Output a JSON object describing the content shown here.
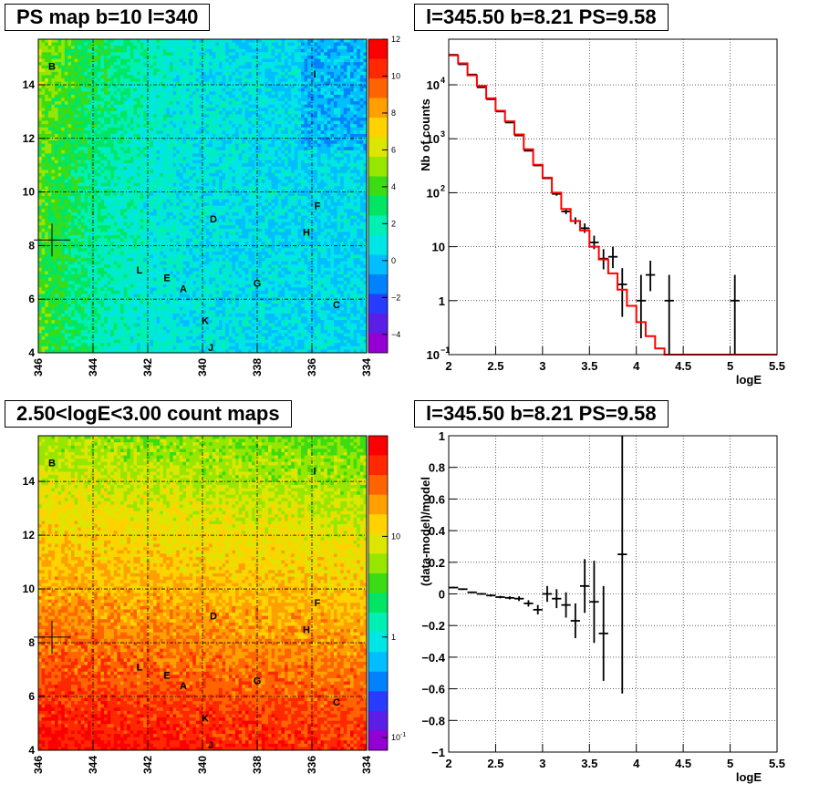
{
  "titles": {
    "tl": "PS map b=10 l=340",
    "tr": "l=345.50 b=8.21 PS=9.58",
    "bl": "2.50<logE<3.00 count maps",
    "br": "l=345.50 b=8.21 PS=9.58"
  },
  "colors": {
    "model_line": "#ff0000",
    "data_marker": "#000000",
    "grid": "#000000"
  },
  "chart_data": [
    {
      "type": "heatmap",
      "title": "PS map b=10 l=340",
      "x_axis": {
        "min": 334,
        "max": 346,
        "reversed": true,
        "ticks": [
          346,
          344,
          342,
          340,
          338,
          336,
          334
        ]
      },
      "y_axis": {
        "min": 4,
        "max": 15.7,
        "ticks": [
          4,
          6,
          8,
          10,
          12,
          14
        ]
      },
      "colorbar": {
        "min": -5,
        "max": 12,
        "ticks": [
          -4,
          -2,
          0,
          2,
          4,
          6,
          8,
          10,
          12
        ]
      },
      "source_labels": [
        {
          "label": "B",
          "l": 345.5,
          "b": 14.7
        },
        {
          "label": "I",
          "l": 335.9,
          "b": 14.4
        },
        {
          "label": "F",
          "l": 335.8,
          "b": 9.5
        },
        {
          "label": "D",
          "l": 339.6,
          "b": 9.0
        },
        {
          "label": "H",
          "l": 336.2,
          "b": 8.5
        },
        {
          "label": "L",
          "l": 342.3,
          "b": 7.1
        },
        {
          "label": "E",
          "l": 341.3,
          "b": 6.8
        },
        {
          "label": "A",
          "l": 340.7,
          "b": 6.4
        },
        {
          "label": "G",
          "l": 338.0,
          "b": 6.6
        },
        {
          "label": "C",
          "l": 335.1,
          "b": 5.8
        },
        {
          "label": "K",
          "l": 339.9,
          "b": 5.2
        },
        {
          "label": "J",
          "l": 339.7,
          "b": 4.2
        }
      ],
      "marker": {
        "l": 345.5,
        "b": 8.21
      },
      "grid": true
    },
    {
      "type": "line",
      "title": "l=345.50 b=8.21 PS=9.58",
      "xlabel": "logE",
      "ylabel": "Nb of counts",
      "y_log": true,
      "xlim": [
        2,
        5.5
      ],
      "ylim": [
        0.1,
        70000
      ],
      "x_ticks": [
        "2",
        "2.5",
        "3",
        "3.5",
        "4",
        "4.5",
        "5",
        "5.5"
      ],
      "y_ticks": [
        {
          "v": 0.1,
          "base": "10",
          "exp": "−1"
        },
        {
          "v": 1,
          "base": "1",
          "exp": ""
        },
        {
          "v": 10,
          "base": "10",
          "exp": ""
        },
        {
          "v": 100,
          "base": "10",
          "exp": "2"
        },
        {
          "v": 1000,
          "base": "10",
          "exp": "3"
        },
        {
          "v": 10000,
          "base": "10",
          "exp": "4"
        }
      ],
      "series": [
        {
          "values": [
            [
              2.05,
              35000
            ],
            [
              2.15,
              25000
            ],
            [
              2.25,
              15000
            ],
            [
              2.35,
              9500
            ],
            [
              2.45,
              5600
            ],
            [
              2.55,
              3300
            ],
            [
              2.65,
              2100
            ],
            [
              2.75,
              1200
            ],
            [
              2.85,
              640
            ],
            [
              2.95,
              330
            ],
            [
              3.05,
              190
            ],
            [
              3.15,
              100
            ],
            [
              3.25,
              50
            ],
            [
              3.35,
              30
            ],
            [
              3.45,
              20
            ],
            [
              3.55,
              10
            ],
            [
              3.65,
              5.8
            ],
            [
              3.75,
              3.2
            ],
            [
              3.85,
              1.6
            ],
            [
              3.95,
              0.8
            ],
            [
              4.05,
              0.4
            ],
            [
              4.15,
              0.22
            ],
            [
              4.25,
              0.13
            ],
            [
              4.35,
              0.1
            ],
            [
              4.45,
              0.1
            ],
            [
              4.55,
              0.1
            ],
            [
              4.65,
              0.1
            ],
            [
              4.75,
              0.1
            ],
            [
              4.85,
              0.1
            ],
            [
              4.95,
              0.1
            ],
            [
              5.05,
              0.1
            ],
            [
              5.15,
              0.1
            ],
            [
              5.25,
              0.1
            ],
            [
              5.35,
              0.1
            ],
            [
              5.45,
              0.1
            ]
          ]
        },
        {
          "values": [
            [
              2.05,
              36000,
              36000,
              36000
            ],
            [
              2.15,
              24000,
              24000,
              24000
            ],
            [
              2.25,
              15500,
              15500,
              15500
            ],
            [
              2.35,
              9000,
              9000,
              9000
            ],
            [
              2.45,
              5400,
              5400,
              5400
            ],
            [
              2.55,
              3200,
              3200,
              3200
            ],
            [
              2.65,
              2000,
              2000,
              2000
            ],
            [
              2.75,
              1150,
              1150,
              1150
            ],
            [
              2.85,
              600,
              600,
              600
            ],
            [
              2.95,
              320,
              320,
              320
            ],
            [
              3.05,
              185,
              185,
              185
            ],
            [
              3.15,
              95,
              88,
              103
            ],
            [
              3.25,
              45,
              40,
              50
            ],
            [
              3.35,
              30,
              26,
              35
            ],
            [
              3.45,
              22,
              18,
              27
            ],
            [
              3.55,
              12,
              9,
              16
            ],
            [
              3.65,
              6,
              3.8,
              9
            ],
            [
              3.75,
              6.5,
              4,
              10
            ],
            [
              3.85,
              2,
              0.5,
              4
            ],
            [
              4.05,
              1,
              0.2,
              3
            ],
            [
              4.15,
              3,
              1.5,
              5.5
            ],
            [
              4.35,
              1,
              0.1,
              3
            ],
            [
              5.05,
              1,
              0.1,
              3
            ]
          ]
        }
      ],
      "grid": true
    },
    {
      "type": "heatmap",
      "title": "2.50<logE<3.00 count maps",
      "x_axis": {
        "min": 334,
        "max": 346,
        "reversed": true,
        "ticks": [
          346,
          344,
          342,
          340,
          338,
          336,
          334
        ]
      },
      "y_axis": {
        "min": 4,
        "max": 15.7,
        "ticks": [
          4,
          6,
          8,
          10,
          12,
          14
        ]
      },
      "colorbar": {
        "log": true,
        "ticks": [
          {
            "v": 0.1,
            "base": "10",
            "exp": "-1"
          },
          {
            "v": 1,
            "base": "1",
            "exp": ""
          },
          {
            "v": 10,
            "base": "10",
            "exp": ""
          }
        ]
      },
      "source_labels": [
        {
          "label": "B",
          "l": 345.5,
          "b": 14.7
        },
        {
          "label": "I",
          "l": 335.9,
          "b": 14.4
        },
        {
          "label": "F",
          "l": 335.8,
          "b": 9.5
        },
        {
          "label": "D",
          "l": 339.6,
          "b": 9.0
        },
        {
          "label": "H",
          "l": 336.2,
          "b": 8.5
        },
        {
          "label": "L",
          "l": 342.3,
          "b": 7.1
        },
        {
          "label": "E",
          "l": 341.3,
          "b": 6.8
        },
        {
          "label": "A",
          "l": 340.7,
          "b": 6.4
        },
        {
          "label": "G",
          "l": 338.0,
          "b": 6.6
        },
        {
          "label": "C",
          "l": 335.1,
          "b": 5.8
        },
        {
          "label": "K",
          "l": 339.9,
          "b": 5.2
        },
        {
          "label": "J",
          "l": 339.7,
          "b": 4.2
        }
      ],
      "marker": {
        "l": 345.5,
        "b": 8.21
      },
      "grid": true
    },
    {
      "type": "scatter",
      "title": "l=345.50 b=8.21 PS=9.58",
      "xlabel": "logE",
      "ylabel": "(data-model)/model",
      "xlim": [
        2,
        5.5
      ],
      "ylim": [
        -1,
        1
      ],
      "x_ticks": [
        "2",
        "2.5",
        "3",
        "3.5",
        "4",
        "4.5",
        "5",
        "5.5"
      ],
      "y_ticks": [
        "−1",
        "−0.8",
        "−0.6",
        "−0.4",
        "−0.2",
        "0",
        "0.2",
        "0.4",
        "0.6",
        "0.8",
        "1"
      ],
      "series": [
        {
          "values": [
            [
              2.05,
              0.04,
              0.035,
              0.045
            ],
            [
              2.15,
              0.03,
              0.025,
              0.035
            ],
            [
              2.25,
              0.01,
              0.005,
              0.015
            ],
            [
              2.35,
              0.0,
              -0.006,
              0.006
            ],
            [
              2.45,
              -0.01,
              -0.017,
              -0.003
            ],
            [
              2.55,
              -0.02,
              -0.028,
              -0.012
            ],
            [
              2.65,
              -0.025,
              -0.035,
              -0.015
            ],
            [
              2.75,
              -0.03,
              -0.045,
              -0.015
            ],
            [
              2.85,
              -0.06,
              -0.08,
              -0.04
            ],
            [
              2.95,
              -0.1,
              -0.13,
              -0.07
            ],
            [
              3.05,
              0.0,
              -0.05,
              0.05
            ],
            [
              3.15,
              -0.03,
              -0.09,
              0.03
            ],
            [
              3.25,
              -0.07,
              -0.15,
              0.01
            ],
            [
              3.35,
              -0.17,
              -0.28,
              -0.06
            ],
            [
              3.45,
              0.05,
              -0.12,
              0.22
            ],
            [
              3.55,
              -0.05,
              -0.31,
              0.21
            ],
            [
              3.65,
              -0.25,
              -0.55,
              0.05
            ],
            [
              3.85,
              0.25,
              -0.63,
              1.0
            ]
          ]
        }
      ],
      "grid": true
    }
  ]
}
